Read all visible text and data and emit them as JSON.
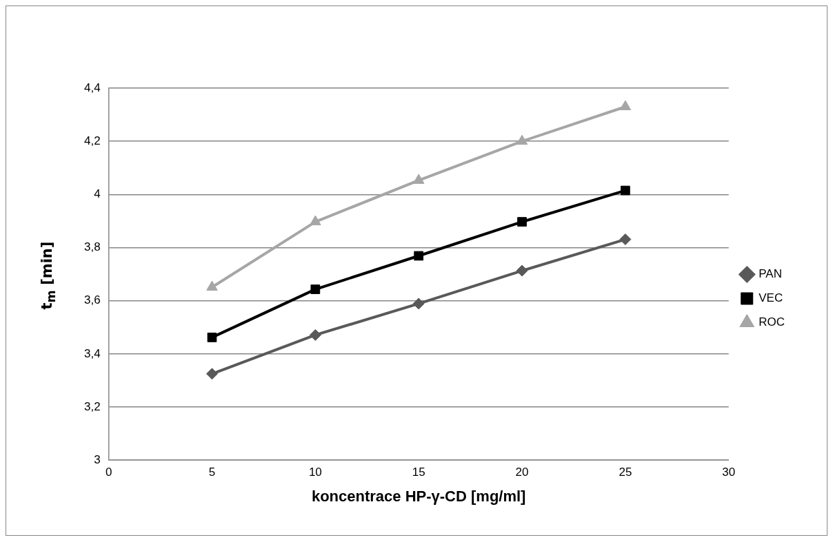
{
  "chart_data": {
    "type": "line",
    "xlabel": "koncentrace HP-γ-CD [mg/ml]",
    "ylabel": "t$_{m}$ [min]",
    "x": [
      5,
      10,
      15,
      20,
      25
    ],
    "xlim": [
      0,
      30
    ],
    "xticks": [
      0,
      5,
      10,
      15,
      20,
      25,
      30
    ],
    "ylim": [
      3,
      4.4
    ],
    "yticks": [
      3,
      {
        "value": 3.2,
        "label": "3,2"
      },
      {
        "value": 3.4,
        "label": "3,4"
      },
      {
        "value": 3.6,
        "label": "3,6"
      },
      {
        "value": 3.8,
        "label": "3,8"
      },
      4,
      {
        "value": 4.2,
        "label": "4,2"
      },
      {
        "value": 4.4,
        "label": "4,4"
      }
    ],
    "grid": "y",
    "legend": "right",
    "line_style": "solid",
    "series": [
      {
        "name": "PAN",
        "color": "#595959",
        "marker": "diamond",
        "values": [
          3.325,
          3.471,
          3.589,
          3.713,
          3.831
        ]
      },
      {
        "name": "VEC",
        "color": "#000000",
        "marker": "square",
        "values": [
          3.462,
          3.643,
          3.769,
          3.897,
          4.015
        ]
      },
      {
        "name": "ROC",
        "color": "#a6a6a6",
        "marker": "triangle",
        "values": [
          3.651,
          3.897,
          4.053,
          4.2,
          4.33
        ]
      }
    ]
  }
}
